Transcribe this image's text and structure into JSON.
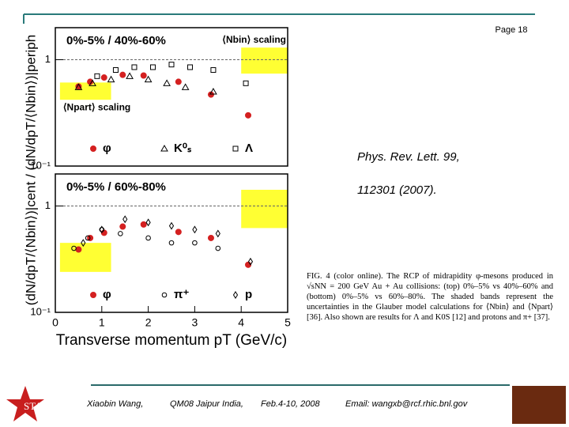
{
  "header": {
    "page": "Page 18"
  },
  "chart_data": [
    {
      "type": "scatter",
      "title": "0%-5% / 40%-60%",
      "ylabel": "(dN/dpT/⟨Nbin⟩)|cent / (dN/dpT/⟨Nbin⟩)|periph",
      "xlim": [
        0,
        5
      ],
      "ylim": [
        0.1,
        2
      ],
      "log_y": true,
      "yticks": [
        {
          "value": 0.1,
          "label": "10⁻¹"
        },
        1
      ],
      "hline": 1,
      "bands": [
        {
          "label": "⟨Nbin⟩ scaling",
          "x": [
            4,
            5
          ],
          "y": [
            0.74,
            1.3
          ],
          "color": "#ffff33"
        },
        {
          "label": "⟨Npart⟩ scaling",
          "x": [
            0.1,
            1.2
          ],
          "y": [
            0.42,
            0.61
          ],
          "color": "#ffff33"
        }
      ],
      "series": [
        {
          "name": "φ",
          "marker": "circle",
          "color": "#d42020",
          "x": [
            0.5,
            0.75,
            1.05,
            1.45,
            1.9,
            2.65,
            3.35,
            4.15
          ],
          "values": [
            0.56,
            0.62,
            0.68,
            0.72,
            0.71,
            0.62,
            0.47,
            0.3
          ]
        },
        {
          "name": "K⁰ₛ",
          "marker": "triangle",
          "color": "#000000",
          "x": [
            0.5,
            0.8,
            1.2,
            1.6,
            2.0,
            2.4,
            2.8,
            3.4
          ],
          "values": [
            0.55,
            0.6,
            0.65,
            0.7,
            0.65,
            0.6,
            0.55,
            0.5
          ]
        },
        {
          "name": "Λ",
          "marker": "square",
          "color": "#000000",
          "x": [
            0.9,
            1.3,
            1.7,
            2.1,
            2.5,
            2.9,
            3.4,
            4.1
          ],
          "values": [
            0.7,
            0.8,
            0.85,
            0.85,
            0.9,
            0.85,
            0.8,
            0.6
          ]
        }
      ]
    },
    {
      "type": "scatter",
      "title": "0%-5% / 60%-80%",
      "xlabel": "Transverse momentum pT (GeV/c)",
      "xlim": [
        0,
        5
      ],
      "xticks": [
        0,
        1,
        2,
        3,
        4,
        5
      ],
      "ylim": [
        0.1,
        2
      ],
      "log_y": true,
      "yticks": [
        {
          "value": 0.1,
          "label": "10⁻¹"
        },
        1
      ],
      "hline": 1,
      "bands": [
        {
          "x": [
            4,
            5
          ],
          "y": [
            0.62,
            1.42
          ],
          "color": "#ffff33"
        },
        {
          "x": [
            0.1,
            1.2
          ],
          "y": [
            0.24,
            0.45
          ],
          "color": "#ffff33"
        }
      ],
      "series": [
        {
          "name": "φ",
          "marker": "circle",
          "color": "#d42020",
          "x": [
            0.5,
            0.75,
            1.05,
            1.45,
            1.9,
            2.65,
            3.35,
            4.15
          ],
          "values": [
            0.39,
            0.5,
            0.56,
            0.64,
            0.67,
            0.57,
            0.5,
            0.28
          ]
        },
        {
          "name": "π⁺",
          "marker": "circle-open",
          "color": "#000000",
          "x": [
            0.4,
            0.7,
            1.0,
            1.4,
            2.0,
            2.5,
            3.0,
            3.5
          ],
          "values": [
            0.4,
            0.5,
            0.6,
            0.55,
            0.5,
            0.45,
            0.45,
            0.4
          ]
        },
        {
          "name": "p",
          "marker": "diamond",
          "color": "#000000",
          "x": [
            0.6,
            1.0,
            1.5,
            2.0,
            2.5,
            3.0,
            3.5,
            4.2
          ],
          "values": [
            0.45,
            0.6,
            0.75,
            0.7,
            0.65,
            0.6,
            0.55,
            0.3
          ]
        }
      ]
    }
  ],
  "reference": "Phys. Rev. Lett. 99, 112301 (2007).",
  "caption": "FIG. 4 (color online). The RCP of midrapidity φ-mesons produced in √sNN = 200 GeV Au + Au collisions: (top) 0%–5% vs 40%–60% and (bottom) 0%–5% vs 60%–80%. The shaded bands represent the uncertainties in the Glauber model calculations for ⟨Nbin⟩ and ⟨Npart⟩ [36]. Also shown are results for Λ and K0S [12] and protons and π+ [37].",
  "footer": {
    "logo": "STAR",
    "author": "Xiaobin Wang,",
    "conference": "QM08 Jaipur India,",
    "date": "Feb.4-10, 2008",
    "email": "Email: wangxb@rcf.rhic.bnl.gov"
  }
}
